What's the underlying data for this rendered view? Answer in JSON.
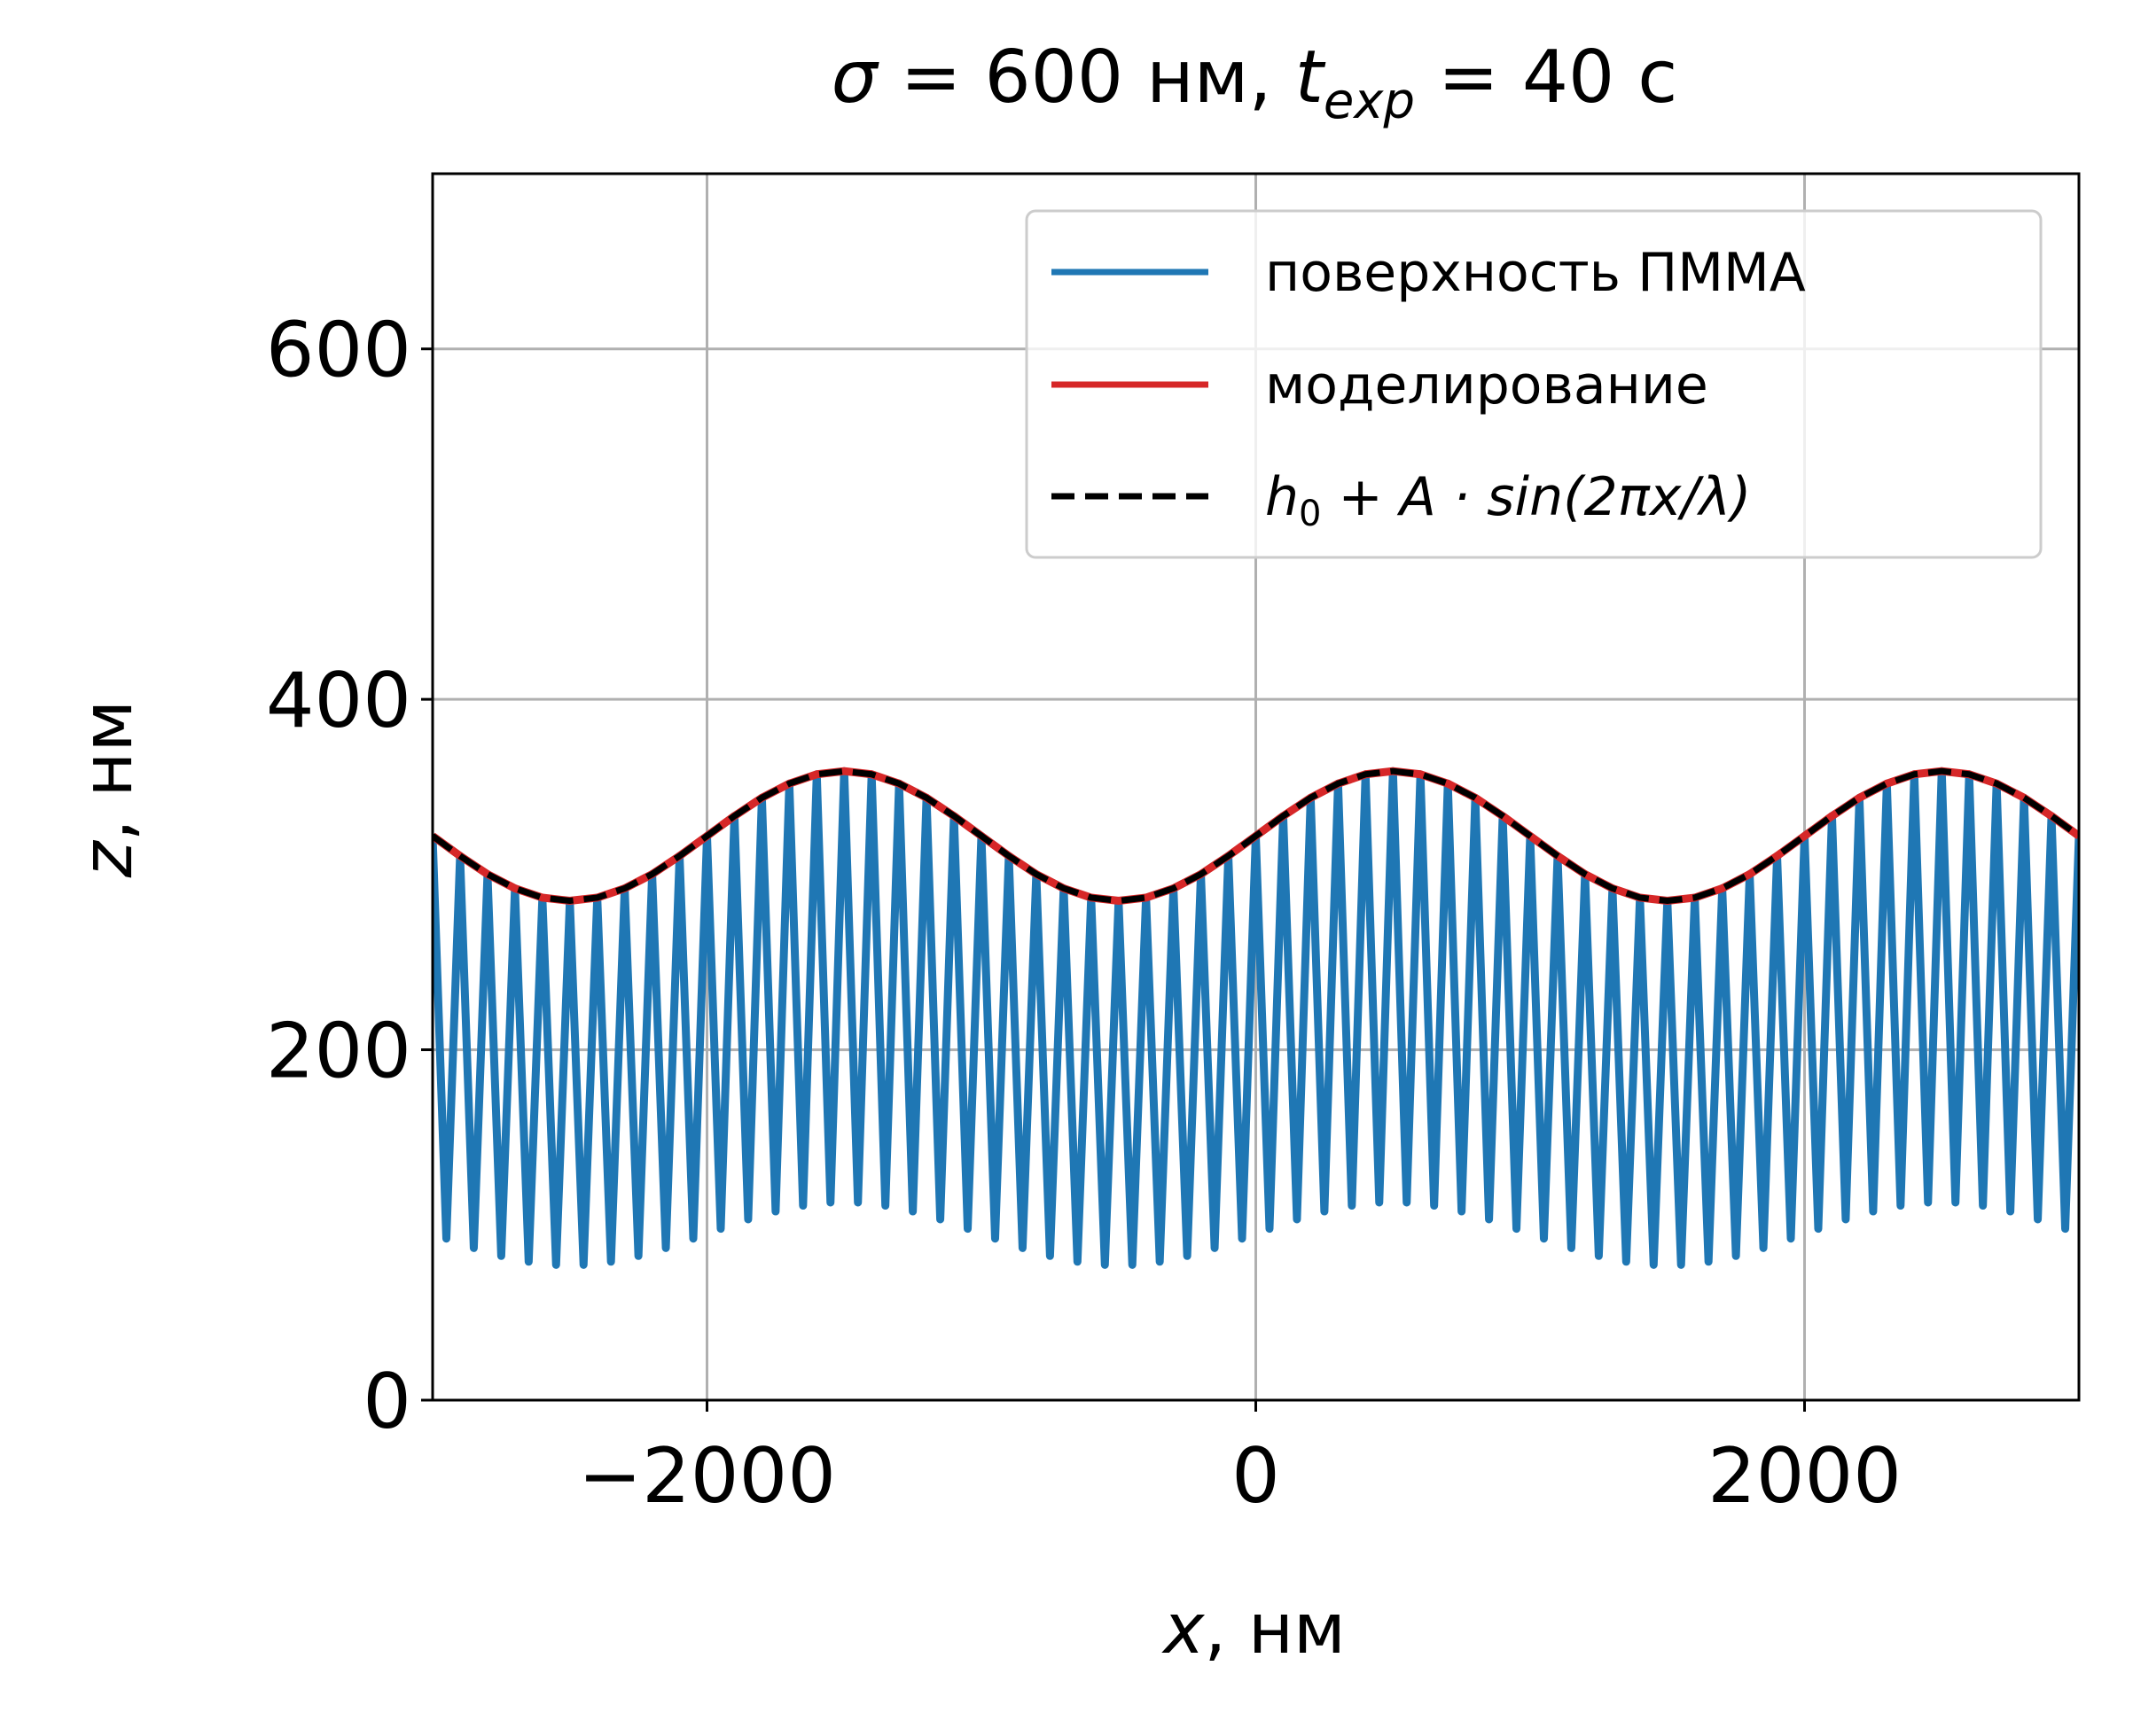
{
  "chart_data": {
    "type": "line",
    "title": [
      "σ",
      " = 600 нм, ",
      "t",
      "exp",
      " = 40 с"
    ],
    "xlabel": [
      "x",
      ", нм"
    ],
    "ylabel": [
      "z",
      ", нм"
    ],
    "xlim": [
      -3000,
      3000
    ],
    "ylim": [
      0,
      700
    ],
    "xticks": [
      {
        "value": -2000,
        "label": "−2000"
      },
      0,
      2000
    ],
    "yticks": [
      0,
      200,
      400,
      600
    ],
    "grid": true,
    "legend": "upper right",
    "series": [
      {
        "name": "поверхность ПММА",
        "color": "#1f77b4",
        "style": "solid",
        "x": [
          -3000,
          -2950,
          -2900,
          -2850,
          -2800,
          -2750,
          -2700,
          -2650,
          -2600,
          -2550,
          -2500,
          -2450,
          -2400,
          -2350,
          -2300,
          -2250,
          -2200,
          -2150,
          -2100,
          -2050,
          -2000,
          -1950,
          -1900,
          -1850,
          -1800,
          -1750,
          -1700,
          -1650,
          -1600,
          -1550,
          -1500,
          -1450,
          -1400,
          -1350,
          -1300,
          -1250,
          -1200,
          -1150,
          -1100,
          -1050,
          -1000,
          -950,
          -900,
          -850,
          -800,
          -750,
          -700,
          -650,
          -600,
          -550,
          -500,
          -450,
          -400,
          -350,
          -300,
          -250,
          -200,
          -150,
          -100,
          -50,
          0,
          50,
          100,
          150,
          200,
          250,
          300,
          350,
          400,
          450,
          500,
          550,
          600,
          650,
          700,
          750,
          800,
          850,
          900,
          950,
          1000,
          1050,
          1100,
          1150,
          1200,
          1250,
          1300,
          1350,
          1400,
          1450,
          1500,
          1550,
          1600,
          1650,
          1700,
          1750,
          1800,
          1850,
          1900,
          1950,
          2000,
          2050,
          2100,
          2150,
          2200,
          2250,
          2300,
          2350,
          2400,
          2450,
          2500,
          2550,
          2600,
          2650,
          2700,
          2750,
          2800,
          2850,
          2900,
          2950,
          3000
        ],
        "values": [
          322,
          92.2,
          310.6,
          86.8,
          300.2,
          82.3,
          292.1,
          79,
          286.8,
          77.2,
          285,
          77.2,
          286.8,
          79,
          292.1,
          82.3,
          300.2,
          86.8,
          310.6,
          92.2,
          322,
          97.8,
          333.4,
          103.2,
          343.8,
          107.7,
          351.9,
          111,
          357.2,
          112.8,
          359,
          112.8,
          357.2,
          111,
          351.9,
          107.7,
          343.8,
          103.2,
          333.4,
          97.8,
          322,
          92.2,
          310.6,
          86.8,
          300.2,
          82.3,
          292.1,
          79,
          286.8,
          77.2,
          285,
          77.2,
          286.8,
          79,
          292.1,
          82.3,
          300.2,
          86.8,
          310.6,
          92.2,
          322,
          97.8,
          333.4,
          103.2,
          343.8,
          107.7,
          351.9,
          111,
          357.2,
          112.8,
          359,
          112.8,
          357.2,
          111,
          351.9,
          107.7,
          343.8,
          103.2,
          333.4,
          97.8,
          322,
          92.2,
          310.6,
          86.8,
          300.2,
          82.3,
          292.1,
          79,
          286.8,
          77.2,
          285,
          77.2,
          286.8,
          79,
          292.1,
          82.3,
          300.2,
          86.8,
          310.6,
          92.2,
          322,
          97.8,
          333.4,
          103.2,
          343.8,
          107.7,
          351.9,
          111,
          357.2,
          112.8,
          359,
          112.8,
          357.2,
          111,
          351.9,
          107.7,
          343.8,
          103.2,
          333.4,
          97.8,
          322
        ]
      },
      {
        "name": "моделирование",
        "color": "#d62728",
        "style": "solid",
        "x": [
          -3000,
          -2900,
          -2800,
          -2700,
          -2600,
          -2500,
          -2400,
          -2300,
          -2200,
          -2100,
          -2000,
          -1900,
          -1800,
          -1700,
          -1600,
          -1500,
          -1400,
          -1300,
          -1200,
          -1100,
          -1000,
          -900,
          -800,
          -700,
          -600,
          -500,
          -400,
          -300,
          -200,
          -100,
          0,
          100,
          200,
          300,
          400,
          500,
          600,
          700,
          800,
          900,
          1000,
          1100,
          1200,
          1300,
          1400,
          1500,
          1600,
          1700,
          1800,
          1900,
          2000,
          2100,
          2200,
          2300,
          2400,
          2500,
          2600,
          2700,
          2800,
          2900,
          3000
        ],
        "values": [
          322,
          310.6,
          300.2,
          292.1,
          286.8,
          285,
          286.8,
          292.1,
          300.2,
          310.6,
          322,
          333.4,
          343.8,
          351.9,
          357.2,
          359,
          357.2,
          351.9,
          343.8,
          333.4,
          322,
          310.6,
          300.2,
          292.1,
          286.8,
          285,
          286.8,
          292.1,
          300.2,
          310.6,
          322,
          333.4,
          343.8,
          351.9,
          357.2,
          359,
          357.2,
          351.9,
          343.8,
          333.4,
          322,
          310.6,
          300.2,
          292.1,
          286.8,
          285,
          286.8,
          292.1,
          300.2,
          310.6,
          322,
          333.4,
          343.8,
          351.9,
          357.2,
          359,
          357.2,
          351.9,
          343.8,
          333.4,
          322
        ]
      },
      {
        "name": [
          "h",
          "0",
          " + A · sin(2πx/λ)"
        ],
        "color": "#000000",
        "style": "dashed",
        "x": [
          -3000,
          -2900,
          -2800,
          -2700,
          -2600,
          -2500,
          -2400,
          -2300,
          -2200,
          -2100,
          -2000,
          -1900,
          -1800,
          -1700,
          -1600,
          -1500,
          -1400,
          -1300,
          -1200,
          -1100,
          -1000,
          -900,
          -800,
          -700,
          -600,
          -500,
          -400,
          -300,
          -200,
          -100,
          0,
          100,
          200,
          300,
          400,
          500,
          600,
          700,
          800,
          900,
          1000,
          1100,
          1200,
          1300,
          1400,
          1500,
          1600,
          1700,
          1800,
          1900,
          2000,
          2100,
          2200,
          2300,
          2400,
          2500,
          2600,
          2700,
          2800,
          2900,
          3000
        ],
        "values": [
          322,
          310.6,
          300.2,
          292.1,
          286.8,
          285,
          286.8,
          292.1,
          300.2,
          310.6,
          322,
          333.4,
          343.8,
          351.9,
          357.2,
          359,
          357.2,
          351.9,
          343.8,
          333.4,
          322,
          310.6,
          300.2,
          292.1,
          286.8,
          285,
          286.8,
          292.1,
          300.2,
          310.6,
          322,
          333.4,
          343.8,
          351.9,
          357.2,
          359,
          357.2,
          351.9,
          343.8,
          333.4,
          322,
          310.6,
          300.2,
          292.1,
          286.8,
          285,
          286.8,
          292.1,
          300.2,
          310.6,
          322,
          333.4,
          343.8,
          351.9,
          357.2,
          359,
          357.2,
          351.9,
          343.8,
          333.4,
          322
        ]
      }
    ]
  }
}
